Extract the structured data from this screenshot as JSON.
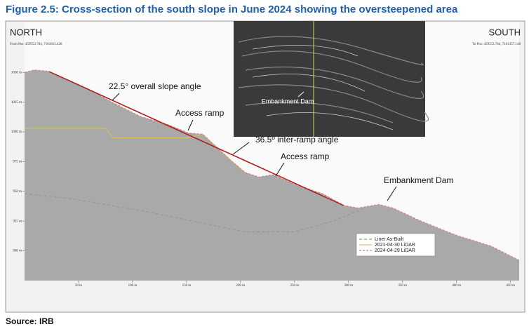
{
  "chart_data": {
    "type": "area",
    "title": "Figure 2.5: Cross-section of the south slope in June 2024 showing the oversteepened area",
    "left_label": "NORTH",
    "right_label": "SOUTH",
    "from_pos": "From Pos: 459553.784, 7101815.428",
    "to_pos": "To Pos: 459553.784, 7101357.148",
    "xlim": [
      0,
      458
    ],
    "ylim": [
      875,
      1092
    ],
    "xticks": [
      {
        "value": 50,
        "label": "50 m"
      },
      {
        "value": 100,
        "label": "100 m"
      },
      {
        "value": 150,
        "label": "150 m"
      },
      {
        "value": 200,
        "label": "200 m"
      },
      {
        "value": 250,
        "label": "250 m"
      },
      {
        "value": 300,
        "label": "300 m"
      },
      {
        "value": 350,
        "label": "350 m"
      },
      {
        "value": 400,
        "label": "400 m"
      },
      {
        "value": 450,
        "label": "450 m"
      }
    ],
    "yticks": [
      {
        "value": 900,
        "label": "900 m"
      },
      {
        "value": 925,
        "label": "925 m"
      },
      {
        "value": 950,
        "label": "950 m"
      },
      {
        "value": 975,
        "label": "975 m"
      },
      {
        "value": 1000,
        "label": "1000 m"
      },
      {
        "value": 1025,
        "label": "1025 m"
      },
      {
        "value": 1050,
        "label": "1050 m"
      }
    ],
    "series": [
      {
        "name": "Liner As-Built",
        "color": "#7fa87a",
        "style": "dashed",
        "x": [
          0,
          42,
          107,
          172,
          204,
          250,
          289,
          315
        ],
        "values": [
          948,
          944,
          934,
          922,
          916,
          916,
          926,
          936
        ]
      },
      {
        "name": "2021-04-30 LiDAR",
        "color": "#d8c060",
        "style": "solid",
        "x": [
          0,
          75,
          82,
          150,
          165,
          178,
          191,
          204
        ],
        "values": [
          1003,
          1003,
          995,
          995,
          998,
          987,
          976,
          966
        ]
      },
      {
        "name": "2024-04-29 LiDAR",
        "color": "#d88080",
        "style": "fill",
        "x": [
          0,
          9,
          22,
          42,
          61,
          81,
          107,
          133,
          152,
          165,
          178,
          191,
          204,
          217,
          230,
          250,
          276,
          296,
          309,
          328,
          341,
          367,
          400,
          432,
          458
        ],
        "values": [
          1050,
          1052,
          1051,
          1043,
          1035,
          1025,
          1013,
          1006,
          999,
          998,
          987,
          976,
          966,
          962,
          964,
          956,
          948,
          938,
          936,
          939,
          936,
          925,
          913,
          904,
          892
        ]
      }
    ],
    "annotations": [
      "22.5° overall slope angle",
      "Access ramp",
      "36.5º inter-ramp angle",
      "Access ramp",
      "Embankment Dam"
    ],
    "inset_label": "Embankment Dam",
    "source": "Source: IRB"
  }
}
